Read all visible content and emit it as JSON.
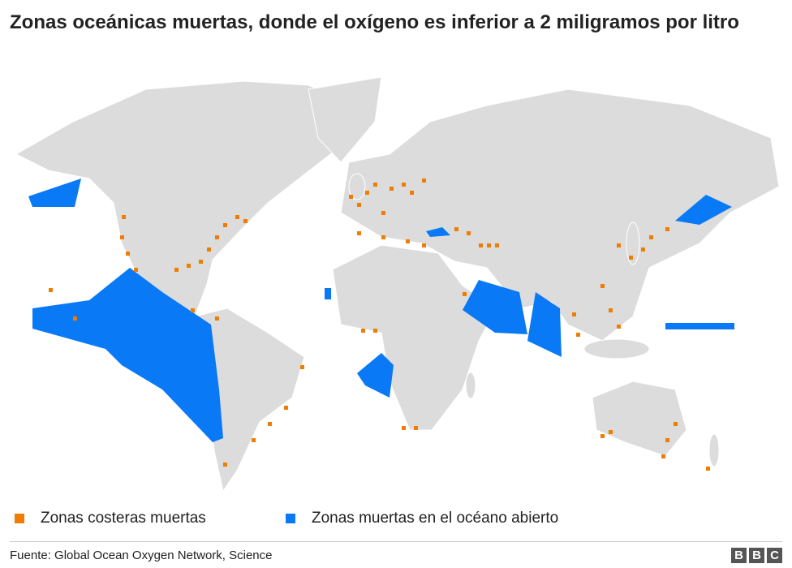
{
  "title": "Zonas oceánicas muertas, donde el oxígeno es inferior a 2 miligramos por litro",
  "legend": [
    {
      "label": "Zonas costeras muertas",
      "color": "#f07c00"
    },
    {
      "label": "Zonas muertas en el océano abierto",
      "color": "#0a79f5"
    }
  ],
  "source": "Fuente: Global Ocean Oxygen Network, Science",
  "logo": [
    "B",
    "B",
    "C"
  ]
}
